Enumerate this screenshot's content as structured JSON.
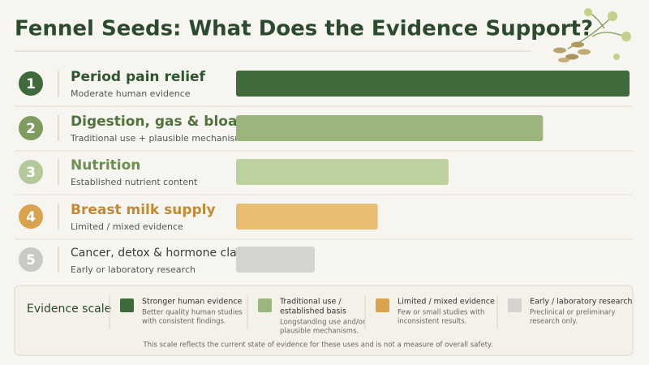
{
  "chart_data": {
    "type": "bar",
    "title": "Fennel Seeds: What Does the Evidence Support?",
    "numbers": [
      1,
      2,
      3,
      4,
      5
    ],
    "categories": [
      "Period pain relief",
      "Digestion, gas & bloating",
      "Nutrition",
      "Breast milk supply",
      "Cancer, detox & hormone claims"
    ],
    "descriptions": [
      "Moderate human evidence",
      "Traditional use + plausible mechanism",
      "Established nutrient content",
      "Limited / mixed evidence",
      "Early or laboratory research"
    ],
    "values": [
      100,
      78,
      54,
      36,
      20
    ],
    "xlim": [
      0,
      100
    ],
    "colors": [
      "#3f6a3c",
      "#9bb57d",
      "#bdd09f",
      "#e8bd74",
      "#d5d3ce"
    ],
    "circle_colors": [
      "#3f6a3c",
      "#7e9c60",
      "#b4c99a",
      "#d9a24c",
      "#c9c8c3"
    ],
    "label_colors": [
      "#2f5530",
      "#52733f",
      "#6d8f4f",
      "#c48a33",
      "#3b3b3b"
    ],
    "legend": {
      "title": "Evidence scale",
      "items": [
        {
          "name": [
            "Stronger human evidence"
          ],
          "description": [
            "Better quality human studies",
            "with consistent findings."
          ],
          "color": "#3f6a3c"
        },
        {
          "name": [
            "Traditional use /",
            "established basis"
          ],
          "description": [
            "Longstanding use and/or",
            "plausible mechanisms."
          ],
          "color": "#9bb57d"
        },
        {
          "name": [
            "Limited / mixed evidence"
          ],
          "description": [
            "Few or small studies with",
            "inconsistent results."
          ],
          "color": "#d9a24c"
        },
        {
          "name": [
            "Early / laboratory research"
          ],
          "description": [
            "Preclinical or preliminary",
            "research only."
          ],
          "color": "#d5d3ce"
        }
      ]
    },
    "footnote": "This scale reflects the current state of evidence for these uses and is not a measure of overall safety."
  }
}
